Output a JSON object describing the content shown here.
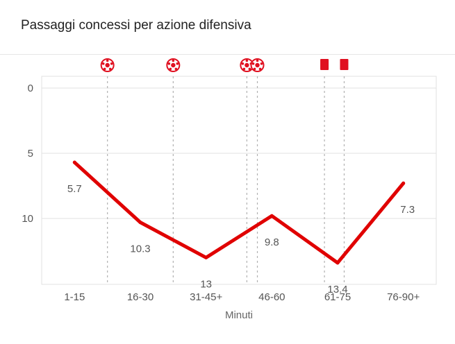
{
  "header": {
    "title": "Passaggi concessi per azione difensiva"
  },
  "chart_data": {
    "type": "line",
    "title": "Passaggi concessi per azione difensiva",
    "categories": [
      "1-15",
      "16-30",
      "31-45+",
      "46-60",
      "61-75",
      "76-90+"
    ],
    "series": [
      {
        "values": [
          5.7,
          10.3,
          13,
          9.8,
          13.4,
          7.3
        ],
        "labels": [
          "5.7",
          "10.3",
          "13",
          "9.8",
          "13.4",
          "7.3"
        ],
        "color": "#e00000"
      }
    ],
    "xlabel": "Minuti",
    "ylabel": "",
    "ylim": [
      0,
      15
    ],
    "y_reversed": true,
    "y_ticks": [
      0,
      5,
      10
    ],
    "grid": true,
    "events": [
      {
        "type": "goal",
        "icon": "soccer-ball-icon",
        "minute_pos": 1.0
      },
      {
        "type": "goal",
        "icon": "soccer-ball-icon",
        "minute_pos": 2.0
      },
      {
        "type": "goal",
        "icon": "soccer-ball-icon",
        "minute_pos": 3.12
      },
      {
        "type": "goal",
        "icon": "soccer-ball-icon",
        "minute_pos": 3.28
      },
      {
        "type": "red-card",
        "icon": "red-card-icon",
        "minute_pos": 4.3
      },
      {
        "type": "red-card",
        "icon": "red-card-icon",
        "minute_pos": 4.6
      }
    ],
    "colors": {
      "line": "#e00000",
      "event": "#e01020",
      "grid": "#e0e0e0"
    }
  }
}
